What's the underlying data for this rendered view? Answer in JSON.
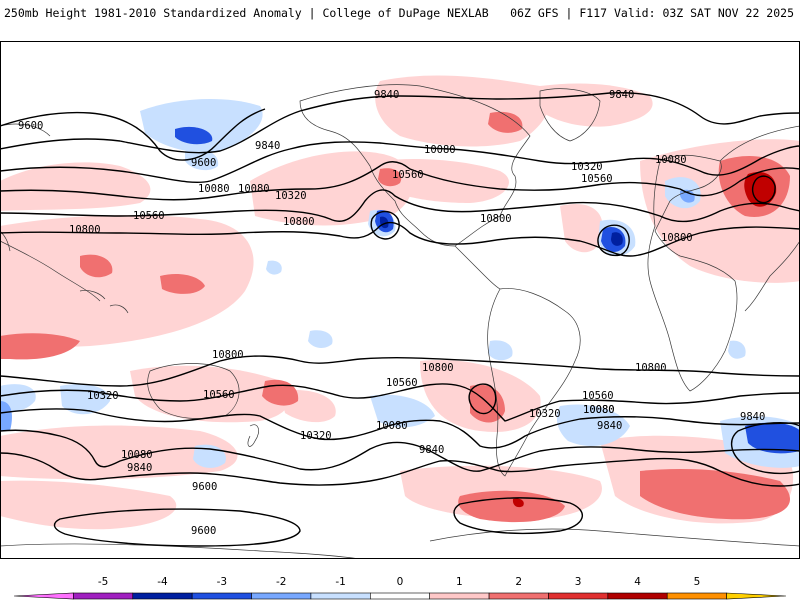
{
  "header": {
    "left_title": "250mb Height 1981-2010 Standardized Anomaly | College of DuPage NEXLAB",
    "right_title": "06Z GFS | F117 Valid: 03Z SAT NOV 22 2025"
  },
  "colors": {
    "ocean": "#ffffff",
    "land_outline": "#3a3a3a",
    "contour": "#000000"
  },
  "contour_labels": [
    "9840",
    "9840",
    "9600",
    "9840",
    "10080",
    "9600",
    "10080",
    "10320",
    "10560",
    "10560",
    "10800",
    "10800",
    "10080",
    "10320",
    "10560",
    "10080",
    "10800",
    "10800",
    "10800",
    "10320",
    "10560",
    "10320",
    "10560",
    "10800",
    "10080",
    "10320",
    "10080",
    "10560",
    "10080",
    "9840",
    "9840",
    "10080",
    "9840",
    "9600",
    "9600"
  ],
  "colorbar": {
    "ticks": [
      "-5",
      "-4",
      "-3",
      "-2",
      "-1",
      "0",
      "1",
      "2",
      "3",
      "4",
      "5"
    ],
    "segments": [
      {
        "from": -6,
        "to": -5,
        "color": "#ff70ff"
      },
      {
        "from": -5,
        "to": -4,
        "color": "#a020c0"
      },
      {
        "from": -4,
        "to": -3,
        "color": "#0020a0"
      },
      {
        "from": -3,
        "to": -2,
        "color": "#2050e0"
      },
      {
        "from": -2,
        "to": -1,
        "color": "#78a8ff"
      },
      {
        "from": -1,
        "to": 0,
        "color": "#c8e0ff"
      },
      {
        "from": 0,
        "to": 1,
        "color": "#ffffff"
      },
      {
        "from": 1,
        "to": 2,
        "color": "#ffc8c8"
      },
      {
        "from": 2,
        "to": 3,
        "color": "#f07070"
      },
      {
        "from": 3,
        "to": 4,
        "color": "#e03030"
      },
      {
        "from": 4,
        "to": 5,
        "color": "#b00000"
      },
      {
        "from": 5,
        "to": 6,
        "color": "#ff9000"
      },
      {
        "from": 6,
        "to": 7,
        "color": "#ffd000"
      }
    ]
  }
}
